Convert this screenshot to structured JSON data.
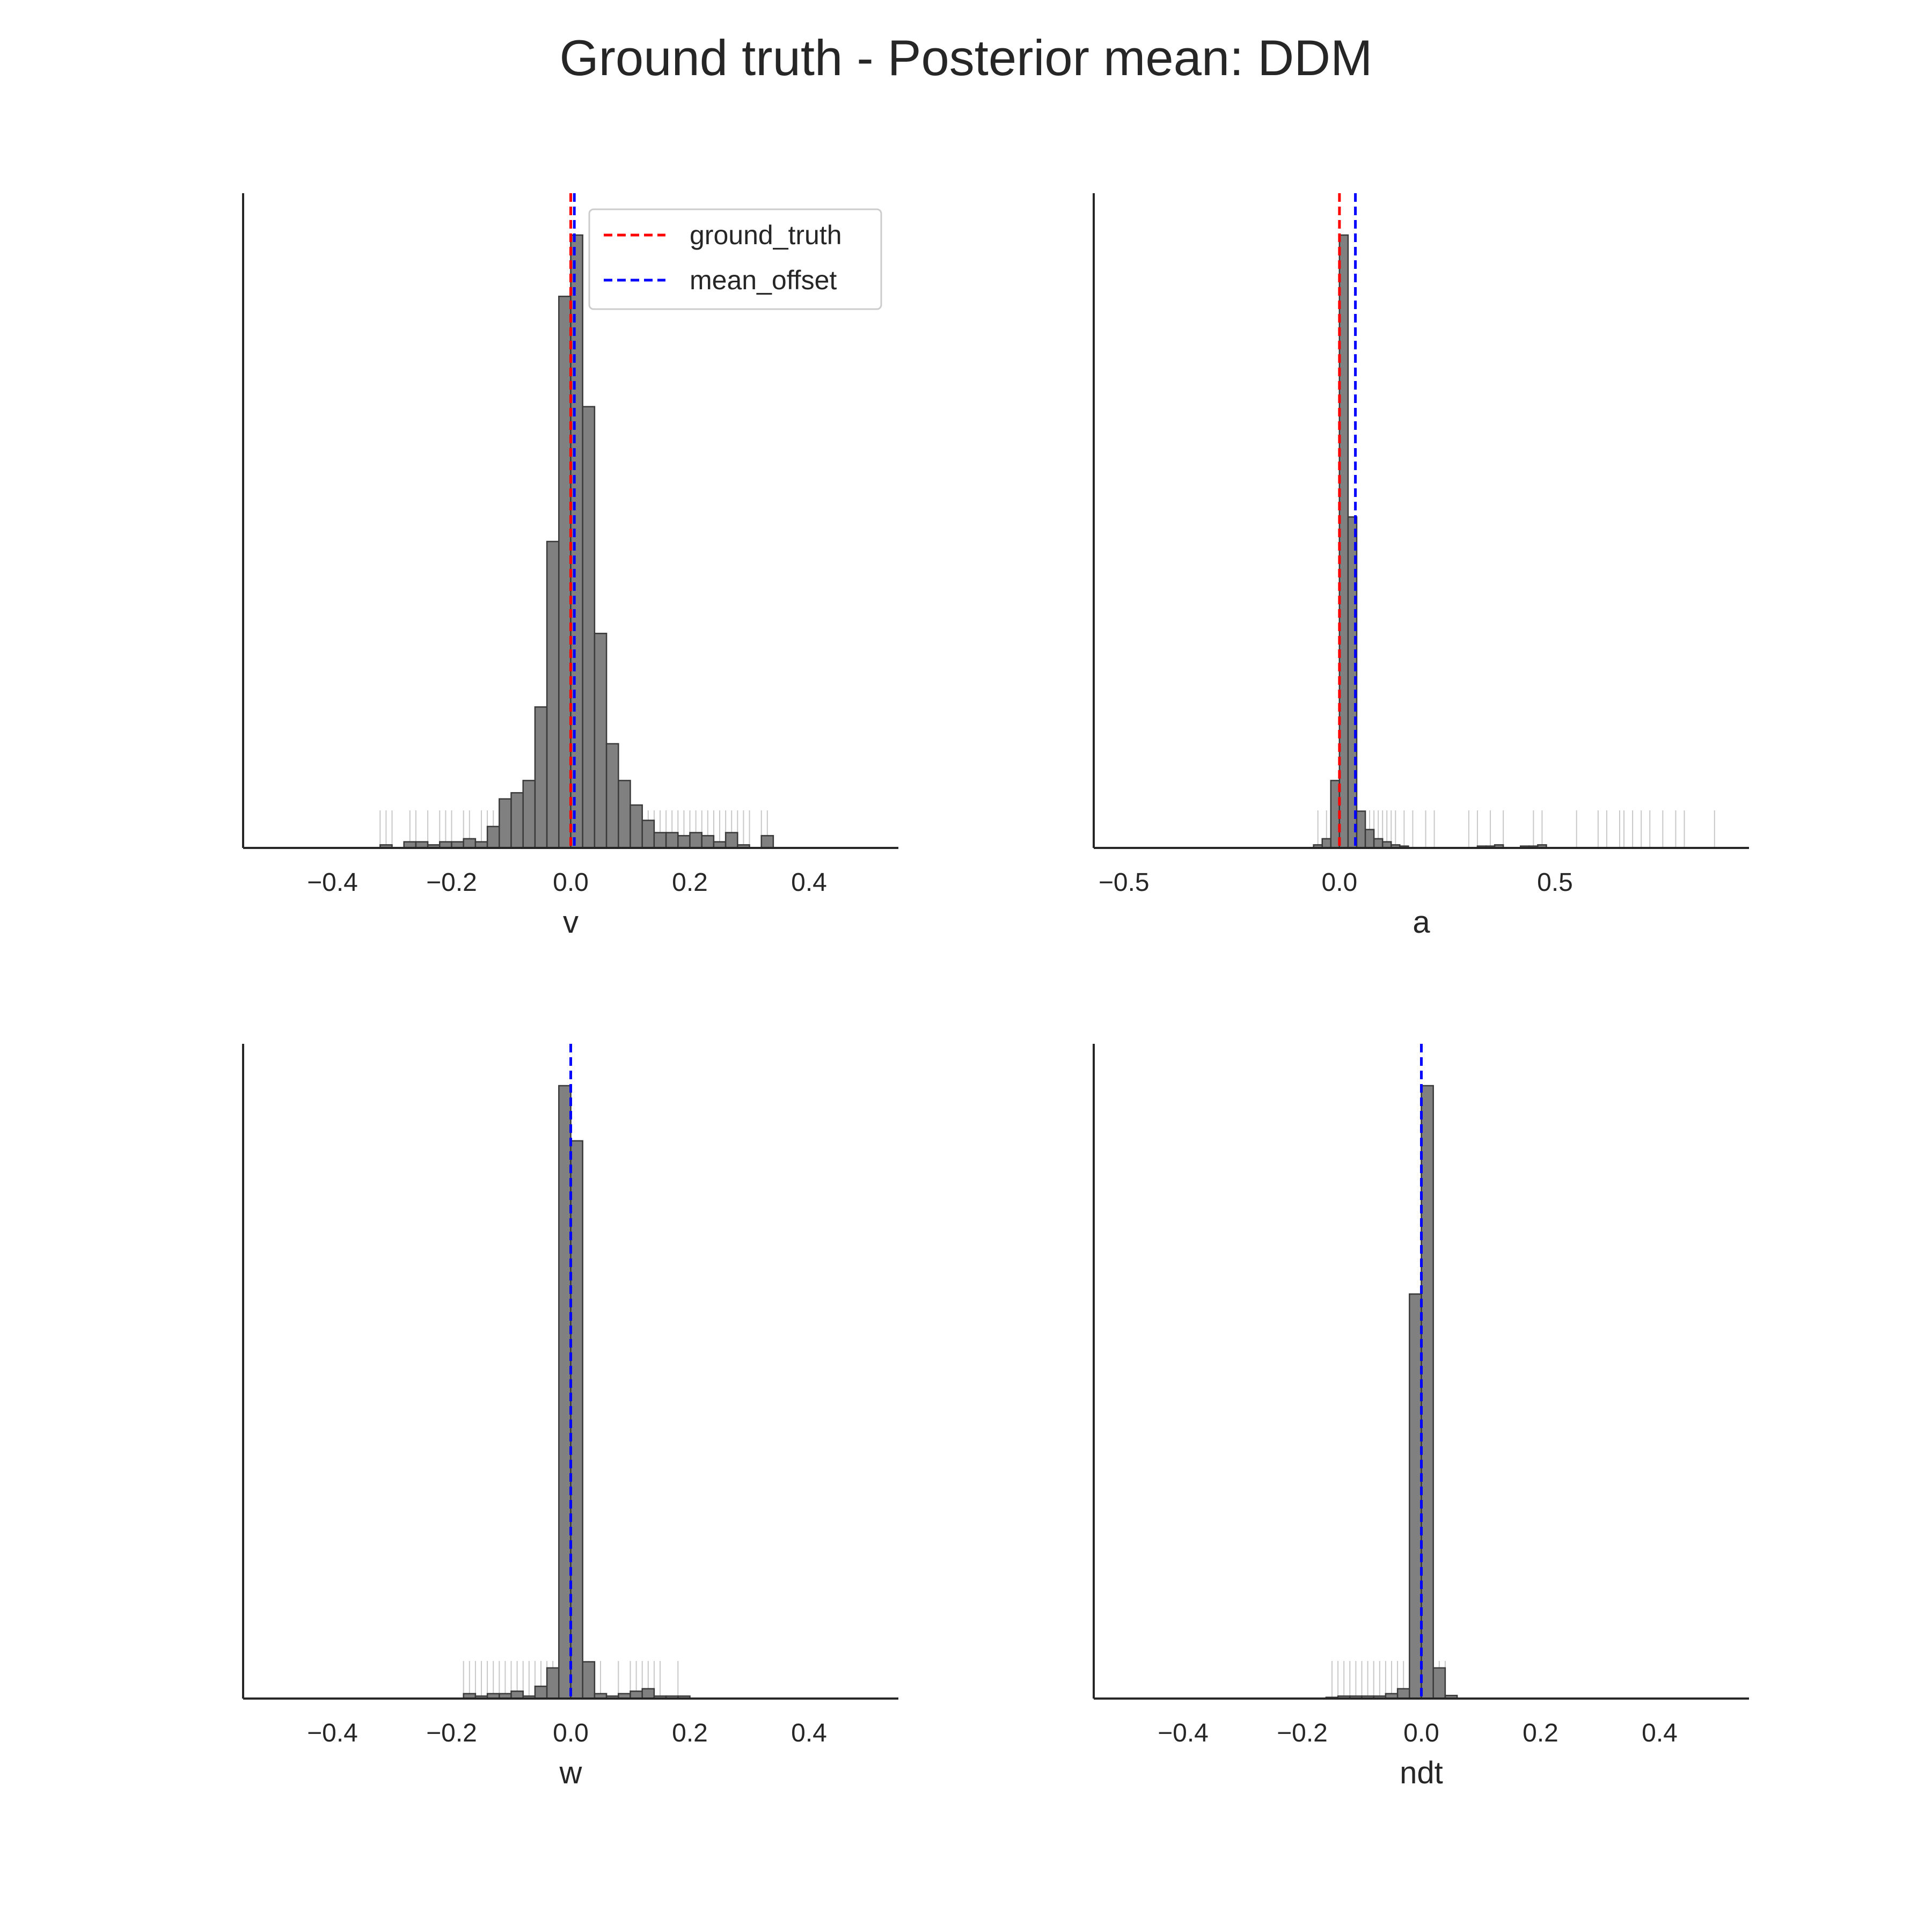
{
  "figure": {
    "title": "Ground truth - Posterior mean: DDM"
  },
  "colors": {
    "bar_fill": "#808080",
    "bar_edge": "#3a3a3a",
    "rug": "#c8c8c8",
    "ground_truth_line": "#ff0000",
    "mean_offset_line": "#0000ff",
    "axis": "#262626"
  },
  "legend": {
    "placement": "top-right of first panel",
    "entries": [
      {
        "label": "ground_truth",
        "color": "#ff0000",
        "style": "dashed"
      },
      {
        "label": "mean_offset",
        "color": "#0000ff",
        "style": "dashed"
      }
    ]
  },
  "chart_data": [
    {
      "type": "histogram",
      "xlabel": "v",
      "xlim": [
        -0.55,
        0.55
      ],
      "ylim": [
        0,
        1.07
      ],
      "xticks": [
        -0.4,
        -0.2,
        0.0,
        0.2,
        0.4
      ],
      "xtick_labels": [
        "−0.4",
        "−0.2",
        "0.0",
        "0.2",
        "0.4"
      ],
      "ground_truth": 0.0,
      "mean_offset": 0.006,
      "show_legend": true,
      "bin_edges": [
        -0.32,
        -0.3,
        -0.28,
        -0.26,
        -0.24,
        -0.22,
        -0.2,
        -0.18,
        -0.16,
        -0.14,
        -0.12,
        -0.1,
        -0.08,
        -0.06,
        -0.04,
        -0.02,
        0.0,
        0.02,
        0.04,
        0.06,
        0.08,
        0.1,
        0.12,
        0.14,
        0.16,
        0.18,
        0.2,
        0.22,
        0.24,
        0.26,
        0.28,
        0.3,
        0.32,
        0.34
      ],
      "counts": [
        0.005,
        0,
        0.01,
        0.01,
        0.005,
        0.01,
        0.01,
        0.015,
        0.01,
        0.035,
        0.08,
        0.09,
        0.11,
        0.23,
        0.5,
        0.9,
        1.0,
        0.72,
        0.35,
        0.17,
        0.11,
        0.07,
        0.045,
        0.025,
        0.025,
        0.02,
        0.025,
        0.02,
        0.01,
        0.025,
        0.005,
        0,
        0.02
      ],
      "rug": [
        -0.32,
        -0.31,
        -0.3,
        -0.27,
        -0.26,
        -0.24,
        -0.22,
        -0.21,
        -0.2,
        -0.18,
        -0.17,
        -0.15,
        -0.14,
        -0.13,
        -0.12,
        -0.11,
        -0.1,
        -0.09,
        -0.08,
        -0.07,
        -0.06,
        -0.05,
        0.06,
        0.08,
        0.1,
        0.11,
        0.13,
        0.14,
        0.15,
        0.16,
        0.17,
        0.18,
        0.19,
        0.2,
        0.21,
        0.22,
        0.23,
        0.24,
        0.25,
        0.26,
        0.27,
        0.28,
        0.29,
        0.3,
        0.32,
        0.33
      ]
    },
    {
      "type": "histogram",
      "xlabel": "a",
      "xlim": [
        -0.57,
        0.95
      ],
      "ylim": [
        0,
        1.07
      ],
      "xticks": [
        -0.5,
        0.0,
        0.5
      ],
      "xtick_labels": [
        "−0.5",
        "0.0",
        "0.5"
      ],
      "ground_truth": 0.0,
      "mean_offset": 0.037,
      "show_legend": false,
      "bin_edges": [
        -0.06,
        -0.04,
        -0.02,
        0.0,
        0.02,
        0.04,
        0.06,
        0.08,
        0.1,
        0.12,
        0.14,
        0.16,
        0.18,
        0.2,
        0.22,
        0.24,
        0.26,
        0.28,
        0.3,
        0.32,
        0.34,
        0.36,
        0.38,
        0.4,
        0.42,
        0.44,
        0.46,
        0.48
      ],
      "counts": [
        0.005,
        0.015,
        0.11,
        1.0,
        0.54,
        0.06,
        0.03,
        0.015,
        0.01,
        0.005,
        0.003,
        0,
        0,
        0,
        0,
        0,
        0,
        0,
        0,
        0.003,
        0.003,
        0.005,
        0,
        0,
        0.003,
        0.003,
        0.005
      ],
      "rug": [
        -0.05,
        -0.03,
        -0.02,
        -0.01,
        0.04,
        0.05,
        0.06,
        0.07,
        0.08,
        0.09,
        0.1,
        0.11,
        0.12,
        0.13,
        0.15,
        0.17,
        0.2,
        0.22,
        0.3,
        0.32,
        0.35,
        0.38,
        0.45,
        0.47,
        0.55,
        0.6,
        0.62,
        0.65,
        0.66,
        0.68,
        0.7,
        0.72,
        0.75,
        0.78,
        0.8,
        0.87
      ]
    },
    {
      "type": "histogram",
      "xlabel": "w",
      "xlim": [
        -0.55,
        0.55
      ],
      "ylim": [
        0,
        1.07
      ],
      "xticks": [
        -0.4,
        -0.2,
        0.0,
        0.2,
        0.4
      ],
      "xtick_labels": [
        "−0.4",
        "−0.2",
        "0.0",
        "0.2",
        "0.4"
      ],
      "ground_truth": 0.0,
      "mean_offset": 0.0,
      "show_legend": false,
      "bin_edges": [
        -0.18,
        -0.16,
        -0.14,
        -0.12,
        -0.1,
        -0.08,
        -0.06,
        -0.04,
        -0.02,
        0.0,
        0.02,
        0.04,
        0.06,
        0.08,
        0.1,
        0.12,
        0.14,
        0.16,
        0.18,
        0.2
      ],
      "counts": [
        0.008,
        0.004,
        0.008,
        0.008,
        0.012,
        0.004,
        0.02,
        0.05,
        1.0,
        0.91,
        0.06,
        0.008,
        0.004,
        0.008,
        0.012,
        0.016,
        0.004,
        0.004,
        0.004
      ],
      "rug": [
        -0.18,
        -0.17,
        -0.16,
        -0.15,
        -0.14,
        -0.13,
        -0.12,
        -0.11,
        -0.1,
        -0.09,
        -0.08,
        -0.07,
        -0.06,
        -0.05,
        -0.04,
        -0.03,
        0.03,
        0.05,
        0.08,
        0.1,
        0.11,
        0.12,
        0.13,
        0.14,
        0.15,
        0.18
      ]
    },
    {
      "type": "histogram",
      "xlabel": "ndt",
      "xlim": [
        -0.55,
        0.55
      ],
      "ylim": [
        0,
        1.07
      ],
      "xticks": [
        -0.4,
        -0.2,
        0.0,
        0.2,
        0.4
      ],
      "xtick_labels": [
        "−0.4",
        "−0.2",
        "0.0",
        "0.2",
        "0.4"
      ],
      "ground_truth": 0.0,
      "mean_offset": 0.0,
      "show_legend": false,
      "bin_edges": [
        -0.16,
        -0.14,
        -0.12,
        -0.1,
        -0.08,
        -0.06,
        -0.04,
        -0.02,
        0.0,
        0.02,
        0.04,
        0.06
      ],
      "counts": [
        0.002,
        0.004,
        0.004,
        0.004,
        0.004,
        0.008,
        0.016,
        0.66,
        1.0,
        0.05,
        0.005
      ],
      "rug": [
        -0.15,
        -0.14,
        -0.13,
        -0.12,
        -0.11,
        -0.1,
        -0.09,
        -0.08,
        -0.07,
        -0.06,
        -0.05,
        -0.04,
        -0.03,
        -0.02,
        0.03,
        0.04
      ]
    }
  ]
}
